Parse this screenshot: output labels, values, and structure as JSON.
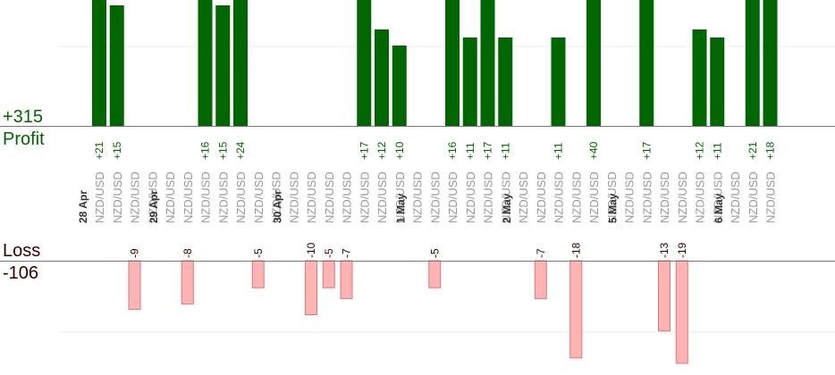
{
  "summary": {
    "profit_total": "+315",
    "profit_label": "Profit",
    "loss_label": "Loss",
    "loss_total": "-106"
  },
  "colors": {
    "profit_bar": "#006600",
    "profit_text": "#006600",
    "loss_bar": "#ffb3b3",
    "loss_bar_border": "#dd7777",
    "loss_text": "#330000",
    "pair_text": "#999999",
    "date_text": "#333333"
  },
  "chart_data": {
    "type": "bar",
    "x_label_pair": "NZD/USD",
    "columns": [
      {
        "date": "28 Apr",
        "profit": 21,
        "loss": null
      },
      {
        "date": "",
        "profit": 15,
        "loss": null
      },
      {
        "date": "",
        "profit": null,
        "loss": -9
      },
      {
        "date": "",
        "profit": null,
        "loss": null
      },
      {
        "date": "29 Apr",
        "profit": null,
        "loss": null
      },
      {
        "date": "",
        "profit": null,
        "loss": -8
      },
      {
        "date": "",
        "profit": 16,
        "loss": null
      },
      {
        "date": "",
        "profit": 15,
        "loss": null
      },
      {
        "date": "",
        "profit": 24,
        "loss": null
      },
      {
        "date": "",
        "profit": null,
        "loss": -5
      },
      {
        "date": "",
        "profit": null,
        "loss": null
      },
      {
        "date": "30 Apr",
        "profit": null,
        "loss": null
      },
      {
        "date": "",
        "profit": null,
        "loss": -10
      },
      {
        "date": "",
        "profit": null,
        "loss": -5
      },
      {
        "date": "",
        "profit": null,
        "loss": -7
      },
      {
        "date": "",
        "profit": 17,
        "loss": null
      },
      {
        "date": "",
        "profit": 12,
        "loss": null
      },
      {
        "date": "",
        "profit": 10,
        "loss": null
      },
      {
        "date": "1 May",
        "profit": null,
        "loss": null
      },
      {
        "date": "",
        "profit": null,
        "loss": -5
      },
      {
        "date": "",
        "profit": 16,
        "loss": null
      },
      {
        "date": "",
        "profit": 11,
        "loss": null
      },
      {
        "date": "",
        "profit": 17,
        "loss": null
      },
      {
        "date": "",
        "profit": 11,
        "loss": null
      },
      {
        "date": "2 May",
        "profit": null,
        "loss": null
      },
      {
        "date": "",
        "profit": null,
        "loss": -7
      },
      {
        "date": "",
        "profit": 11,
        "loss": null
      },
      {
        "date": "",
        "profit": null,
        "loss": -18
      },
      {
        "date": "",
        "profit": 40,
        "loss": null
      },
      {
        "date": "",
        "profit": null,
        "loss": null
      },
      {
        "date": "5 May",
        "profit": null,
        "loss": null
      },
      {
        "date": "",
        "profit": 17,
        "loss": null
      },
      {
        "date": "",
        "profit": null,
        "loss": -13
      },
      {
        "date": "",
        "profit": null,
        "loss": -19
      },
      {
        "date": "",
        "profit": 12,
        "loss": null
      },
      {
        "date": "",
        "profit": 11,
        "loss": null
      },
      {
        "date": "6 May",
        "profit": null,
        "loss": null
      },
      {
        "date": "",
        "profit": 21,
        "loss": null
      },
      {
        "date": "",
        "profit": 18,
        "loss": null
      }
    ]
  }
}
